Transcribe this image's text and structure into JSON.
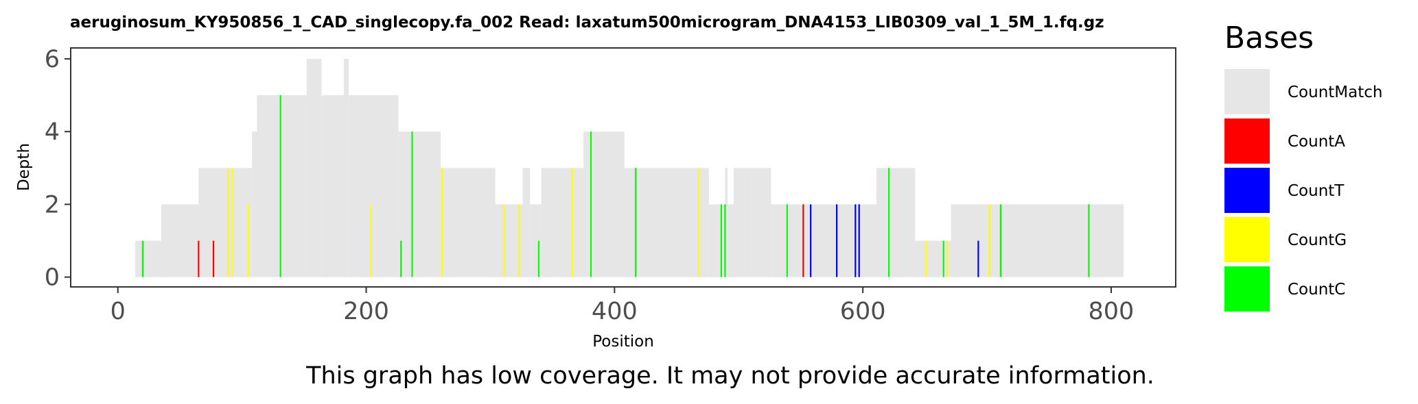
{
  "chart_data": {
    "type": "area",
    "title": "aeruginosum_KY950856_1_CAD_singlecopy.fa_002   Read: laxatum500microgram_DNA4153_LIB0309_val_1_5M_1.fq.gz",
    "xlabel": "Position",
    "ylabel": "Depth",
    "xlim": [
      -38,
      852
    ],
    "ylim": [
      -0.27,
      6.3
    ],
    "x_ticks": [
      0,
      200,
      400,
      600,
      800
    ],
    "y_ticks": [
      0,
      2,
      4,
      6
    ],
    "grid": false,
    "legend": {
      "title": "Bases",
      "position": "right",
      "entries": [
        {
          "name": "CountMatch",
          "color": "#e6e6e6"
        },
        {
          "name": "CountA",
          "color": "#ff0000"
        },
        {
          "name": "CountT",
          "color": "#0000ff"
        },
        {
          "name": "CountG",
          "color": "#ffff00"
        },
        {
          "name": "CountC",
          "color": "#00ff00"
        }
      ]
    },
    "coverage": [
      [
        14,
        1
      ],
      [
        35,
        2
      ],
      [
        65,
        3
      ],
      [
        108,
        4
      ],
      [
        112,
        5
      ],
      [
        152,
        6
      ],
      [
        164,
        5
      ],
      [
        182,
        6
      ],
      [
        186,
        5
      ],
      [
        203,
        5
      ],
      [
        226,
        4
      ],
      [
        260,
        3
      ],
      [
        304,
        2
      ],
      [
        326,
        3
      ],
      [
        332,
        2
      ],
      [
        341,
        3
      ],
      [
        375,
        4
      ],
      [
        408,
        3
      ],
      [
        476,
        2
      ],
      [
        489,
        3
      ],
      [
        491,
        2
      ],
      [
        496,
        3
      ],
      [
        505,
        3
      ],
      [
        526,
        2
      ],
      [
        611,
        3
      ],
      [
        642,
        1
      ],
      [
        671,
        2
      ]
    ],
    "coverage_end": 810,
    "mismatches": [
      {
        "base": "CountC",
        "x": 20,
        "depth": 1
      },
      {
        "base": "CountA",
        "x": 65,
        "depth": 1
      },
      {
        "base": "CountA",
        "x": 77,
        "depth": 1
      },
      {
        "base": "CountG",
        "x": 89,
        "depth": 3
      },
      {
        "base": "CountG",
        "x": 92,
        "depth": 3
      },
      {
        "base": "CountG",
        "x": 105,
        "depth": 2
      },
      {
        "base": "CountC",
        "x": 131,
        "depth": 5
      },
      {
        "base": "CountG",
        "x": 204,
        "depth": 2
      },
      {
        "base": "CountC",
        "x": 228,
        "depth": 1
      },
      {
        "base": "CountC",
        "x": 237,
        "depth": 4
      },
      {
        "base": "CountG",
        "x": 261,
        "depth": 3
      },
      {
        "base": "CountG",
        "x": 311,
        "depth": 2
      },
      {
        "base": "CountG",
        "x": 323,
        "depth": 2
      },
      {
        "base": "CountC",
        "x": 339,
        "depth": 1
      },
      {
        "base": "CountG",
        "x": 366,
        "depth": 3
      },
      {
        "base": "CountC",
        "x": 381,
        "depth": 4
      },
      {
        "base": "CountC",
        "x": 417,
        "depth": 3
      },
      {
        "base": "CountG",
        "x": 468,
        "depth": 3
      },
      {
        "base": "CountC",
        "x": 486,
        "depth": 2
      },
      {
        "base": "CountC",
        "x": 489,
        "depth": 2
      },
      {
        "base": "CountC",
        "x": 539,
        "depth": 2
      },
      {
        "base": "CountA",
        "x": 552,
        "depth": 2
      },
      {
        "base": "CountT",
        "x": 558,
        "depth": 2
      },
      {
        "base": "CountT",
        "x": 579,
        "depth": 2
      },
      {
        "base": "CountT",
        "x": 594,
        "depth": 2
      },
      {
        "base": "CountT",
        "x": 597,
        "depth": 2
      },
      {
        "base": "CountC",
        "x": 621,
        "depth": 3
      },
      {
        "base": "CountG",
        "x": 651,
        "depth": 1
      },
      {
        "base": "CountC",
        "x": 665,
        "depth": 1
      },
      {
        "base": "CountG",
        "x": 668,
        "depth": 1
      },
      {
        "base": "CountT",
        "x": 693,
        "depth": 1
      },
      {
        "base": "CountG",
        "x": 702,
        "depth": 2
      },
      {
        "base": "CountC",
        "x": 711,
        "depth": 2
      },
      {
        "base": "CountC",
        "x": 782,
        "depth": 2
      }
    ],
    "note": "This graph has low coverage. It may not provide accurate information."
  }
}
